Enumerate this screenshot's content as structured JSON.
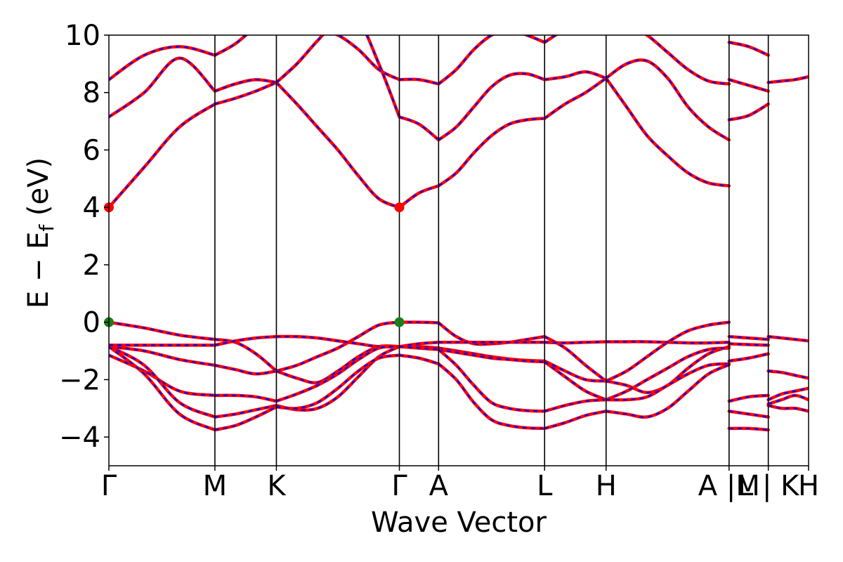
{
  "chart_data": {
    "type": "line",
    "title": "",
    "xlabel": "Wave Vector",
    "ylabel": "E − E",
    "ylabel_subscript": "f",
    "ylabel_unit": " (eV)",
    "ylim": [
      -5,
      10
    ],
    "yticks": [
      -4,
      -2,
      0,
      2,
      4,
      6,
      8,
      10
    ],
    "ytick_labels": [
      "−4",
      "−2",
      "0",
      "2",
      "4",
      "6",
      "8",
      "10"
    ],
    "grid": false,
    "legend": "none",
    "colors": {
      "band_solid": "#ff0000",
      "band_dash": "#0000ff",
      "vbm": "#1a7f1a",
      "cbm": "#ff0000",
      "kline": "#000000"
    },
    "kpath": {
      "labels": [
        "Γ",
        "M",
        "K",
        "Γ",
        "A",
        "L",
        "H",
        "A |M",
        "L | K",
        "H"
      ],
      "positions": [
        0,
        1.0,
        1.58,
        2.74,
        3.11,
        4.11,
        4.69,
        5.85,
        6.22,
        6.6
      ]
    },
    "series": [
      {
        "segment": "Γ-M",
        "bands": [
          [
            0.0,
            -0.2,
            -0.45,
            -0.6
          ],
          [
            -0.85,
            -1.0,
            -1.3,
            -1.5
          ],
          [
            -0.8,
            -0.8,
            -0.8,
            -0.8
          ],
          [
            -1.15,
            -1.7,
            -2.4,
            -2.55
          ],
          [
            -0.85,
            -1.5,
            -2.8,
            -3.3
          ],
          [
            -0.85,
            -1.8,
            -3.2,
            -3.75
          ],
          [
            4.0,
            5.4,
            6.8,
            7.6
          ],
          [
            7.15,
            8.0,
            9.2,
            8.05
          ],
          [
            8.45,
            9.3,
            9.6,
            9.3
          ]
        ]
      },
      {
        "segment": "M-K",
        "bands": [
          [
            -0.6,
            -0.7,
            -1.1,
            -1.7
          ],
          [
            -1.5,
            -1.65,
            -1.8,
            -1.7
          ],
          [
            -0.8,
            -0.65,
            -0.55,
            -0.5
          ],
          [
            -2.55,
            -2.55,
            -2.6,
            -2.75
          ],
          [
            -3.3,
            -3.2,
            -3.05,
            -2.9
          ],
          [
            -3.75,
            -3.6,
            -3.3,
            -2.95
          ],
          [
            7.6,
            7.8,
            8.05,
            8.35
          ],
          [
            8.05,
            8.3,
            8.45,
            8.35
          ],
          [
            9.3,
            9.7,
            10.3,
            10.8
          ]
        ]
      },
      {
        "segment": "K-Γ",
        "bands": [
          [
            -1.7,
            -1.5,
            -1.2,
            -0.9,
            -0.5,
            -0.1,
            0.0
          ],
          [
            -1.7,
            -1.95,
            -2.1,
            -1.7,
            -1.2,
            -0.85,
            -0.85
          ],
          [
            -0.5,
            -0.5,
            -0.55,
            -0.65,
            -0.75,
            -0.85,
            -0.85
          ],
          [
            -2.75,
            -2.5,
            -2.2,
            -1.8,
            -1.3,
            -0.9,
            -0.85
          ],
          [
            -2.9,
            -3.05,
            -3.0,
            -2.6,
            -1.9,
            -1.2,
            -0.85
          ],
          [
            -2.95,
            -3.0,
            -2.8,
            -2.3,
            -1.7,
            -1.25,
            -1.15
          ],
          [
            8.35,
            7.6,
            6.8,
            6.0,
            5.1,
            4.3,
            4.0
          ],
          [
            8.35,
            9.0,
            9.8,
            10.5,
            10.5,
            9.0,
            7.15
          ],
          [
            10.8,
            10.5,
            10.2,
            10.0,
            9.5,
            8.8,
            8.45
          ]
        ]
      },
      {
        "segment": "Γ-A",
        "bands": [
          [
            0.0,
            0.0,
            -0.02
          ],
          [
            -0.85,
            -0.85,
            -0.9
          ],
          [
            -0.85,
            -0.75,
            -0.7
          ],
          [
            -0.85,
            -0.9,
            -0.95
          ],
          [
            -0.85,
            -0.9,
            -0.95
          ],
          [
            -1.15,
            -1.25,
            -1.45
          ],
          [
            4.0,
            4.5,
            4.75
          ],
          [
            7.15,
            6.9,
            6.35
          ],
          [
            8.45,
            8.45,
            8.3
          ]
        ]
      },
      {
        "segment": "A-L",
        "bands": [
          [
            -0.02,
            -0.5,
            -0.75,
            -0.75,
            -0.7,
            -0.6,
            -0.5
          ],
          [
            -0.9,
            -1.0,
            -1.1,
            -1.2,
            -1.28,
            -1.33,
            -1.35
          ],
          [
            -0.7,
            -0.7,
            -0.7,
            -0.7,
            -0.7,
            -0.7,
            -0.7
          ],
          [
            -0.95,
            -1.05,
            -1.15,
            -1.25,
            -1.3,
            -1.35,
            -1.38
          ],
          [
            -0.95,
            -1.5,
            -2.2,
            -2.8,
            -3.0,
            -3.08,
            -3.1
          ],
          [
            -1.45,
            -2.0,
            -2.8,
            -3.4,
            -3.6,
            -3.68,
            -3.7
          ],
          [
            4.75,
            5.2,
            5.9,
            6.5,
            6.9,
            7.05,
            7.1
          ],
          [
            6.35,
            6.8,
            7.5,
            8.2,
            8.6,
            8.65,
            8.45
          ],
          [
            8.3,
            8.8,
            9.5,
            10.0,
            10.2,
            10.0,
            9.75
          ]
        ]
      },
      {
        "segment": "L-H",
        "bands": [
          [
            -0.5,
            -0.9,
            -1.5,
            -2.05
          ],
          [
            -1.35,
            -1.7,
            -2.0,
            -2.05
          ],
          [
            -0.7,
            -0.72,
            -0.7,
            -0.68
          ],
          [
            -1.38,
            -1.9,
            -2.4,
            -2.7
          ],
          [
            -3.1,
            -2.9,
            -2.75,
            -2.7
          ],
          [
            -3.7,
            -3.5,
            -3.25,
            -3.1
          ],
          [
            7.1,
            7.6,
            8.0,
            8.5
          ],
          [
            8.45,
            8.55,
            8.72,
            8.5
          ],
          [
            9.75,
            10.2,
            10.5,
            10.7
          ]
        ]
      },
      {
        "segment": "H-A",
        "bands": [
          [
            -2.05,
            -1.7,
            -1.2,
            -0.7,
            -0.3,
            -0.1,
            0.0
          ],
          [
            -2.05,
            -2.2,
            -2.45,
            -2.2,
            -1.6,
            -1.1,
            -0.85
          ],
          [
            -0.68,
            -0.68,
            -0.68,
            -0.7,
            -0.72,
            -0.72,
            -0.7
          ],
          [
            -2.7,
            -2.4,
            -2.0,
            -1.6,
            -1.2,
            -0.95,
            -0.9
          ],
          [
            -2.7,
            -2.7,
            -2.6,
            -2.2,
            -1.8,
            -1.5,
            -1.45
          ],
          [
            -3.1,
            -3.2,
            -3.3,
            -3.0,
            -2.4,
            -1.8,
            -1.48
          ],
          [
            8.5,
            7.5,
            6.5,
            5.8,
            5.2,
            4.85,
            4.75
          ],
          [
            8.5,
            9.0,
            9.1,
            8.5,
            7.5,
            6.8,
            6.35
          ],
          [
            10.7,
            10.4,
            10.0,
            9.4,
            8.8,
            8.4,
            8.3
          ]
        ]
      },
      {
        "segment": "M-L",
        "bands": [
          [
            -0.5,
            -0.55,
            -0.6
          ],
          [
            -0.75,
            -0.78,
            -0.8
          ],
          [
            -1.35,
            -1.25,
            -1.1
          ],
          [
            -2.75,
            -2.6,
            -2.55
          ],
          [
            -3.1,
            -3.2,
            -3.3
          ],
          [
            -3.7,
            -3.7,
            -3.75
          ],
          [
            7.05,
            7.2,
            7.6
          ],
          [
            8.45,
            8.25,
            8.05
          ],
          [
            9.75,
            9.6,
            9.3
          ]
        ]
      },
      {
        "segment": "K-H",
        "bands": [
          [
            -0.5,
            -0.55,
            -0.6,
            -0.65
          ],
          [
            -1.7,
            -1.75,
            -1.85,
            -1.95
          ],
          [
            -2.7,
            -2.5,
            -2.4,
            -2.3
          ],
          [
            -2.85,
            -2.7,
            -2.55,
            -2.7
          ],
          [
            -2.9,
            -3.0,
            -3.0,
            -3.1
          ],
          [
            8.35,
            8.4,
            8.45,
            8.55
          ]
        ]
      }
    ],
    "markers": {
      "vbm": [
        {
          "k": 0,
          "E": 0.0
        },
        {
          "k": 2.74,
          "E": 0.0
        }
      ],
      "cbm": [
        {
          "k": 0,
          "E": 4.0
        },
        {
          "k": 2.74,
          "E": 4.0
        }
      ]
    }
  }
}
